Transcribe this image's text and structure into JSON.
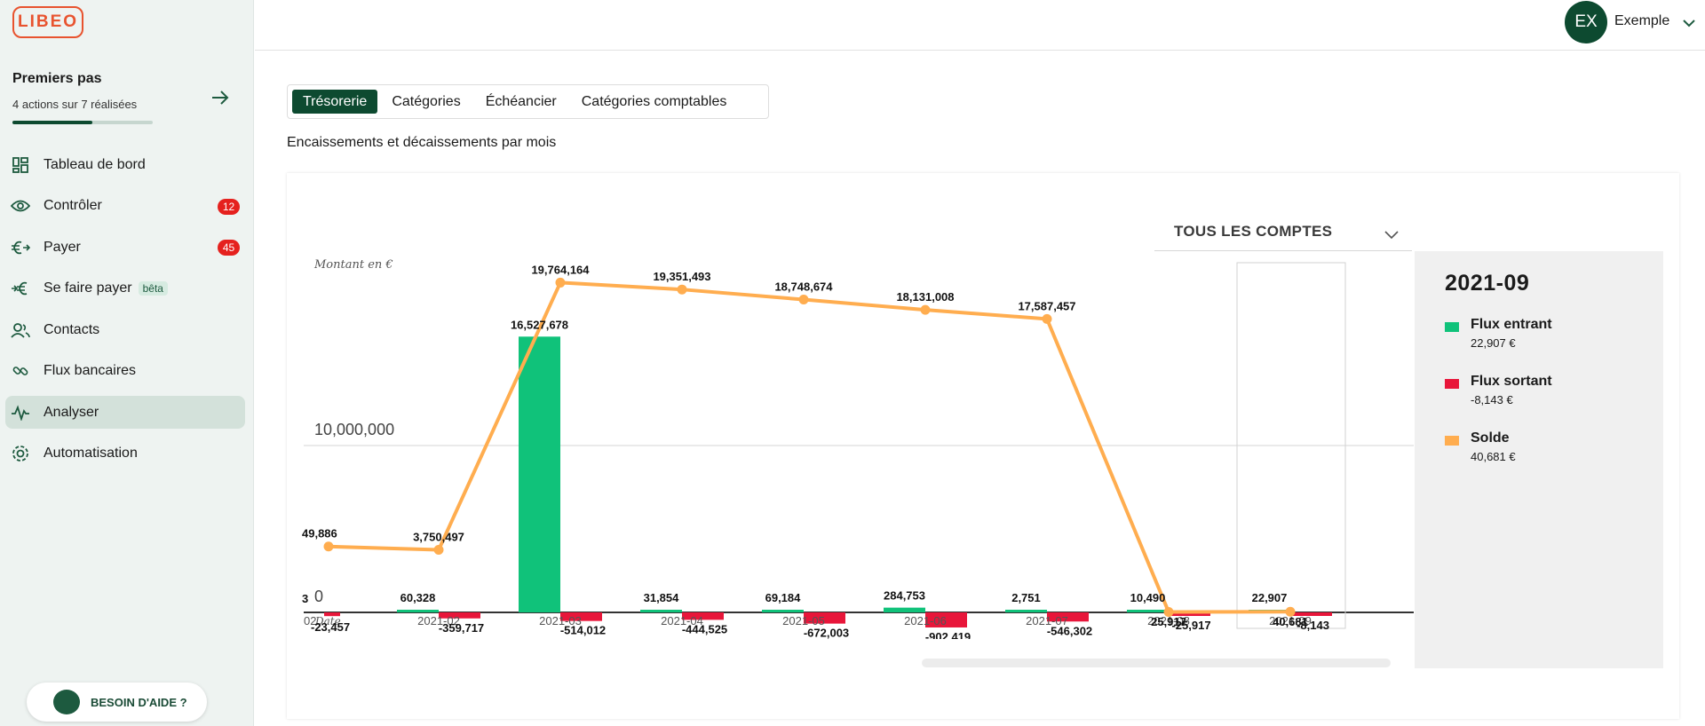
{
  "app": {
    "logo_text": "LIBEO"
  },
  "onboarding": {
    "title": "Premiers pas",
    "subtitle": "4 actions sur 7 réalisées",
    "progress_fraction": 0.5714
  },
  "sidebar": {
    "items": [
      {
        "label": "Tableau de bord",
        "icon": "dashboard-icon",
        "badge": ""
      },
      {
        "label": "Contrôler",
        "icon": "eye-icon",
        "badge": "12"
      },
      {
        "label": "Payer",
        "icon": "euro-out-icon",
        "badge": "45"
      },
      {
        "label": "Se faire payer",
        "icon": "euro-in-icon",
        "badge": "",
        "tag": "bêta"
      },
      {
        "label": "Contacts",
        "icon": "contacts-icon",
        "badge": ""
      },
      {
        "label": "Flux bancaires",
        "icon": "link-icon",
        "badge": ""
      },
      {
        "label": "Analyser",
        "icon": "pulse-icon",
        "badge": "",
        "active": true
      },
      {
        "label": "Automatisation",
        "icon": "gear-icon",
        "badge": ""
      }
    ],
    "help_label": "BESOIN D'AIDE ?"
  },
  "user": {
    "initials": "EX",
    "name": "Exemple"
  },
  "tabs": [
    {
      "label": "Trésorerie",
      "active": true
    },
    {
      "label": "Catégories",
      "active": false
    },
    {
      "label": "Échéancier",
      "active": false
    },
    {
      "label": "Catégories comptables",
      "active": false
    }
  ],
  "page": {
    "subtitle": "Encaissements et décaissements par mois"
  },
  "account_filter": {
    "label": "TOUS LES COMPTES"
  },
  "colors": {
    "primary": "#0d4a30",
    "inflow": "#10c27a",
    "outflow": "#e8163a",
    "balance": "#ffad4f",
    "badge": "#e5211e"
  },
  "chart_data": {
    "type": "bar",
    "ylabel": "Montant en €",
    "xlabel": "Date",
    "y_ticks": [
      0,
      10000000
    ],
    "y_tick_labels": [
      "0",
      "10,000,000"
    ],
    "categories": [
      "2021-02",
      "2021-03",
      "2021-04",
      "2021-05",
      "2021-06",
      "2021-07",
      "2021-08",
      "2021-09"
    ],
    "partial_left": {
      "label": "02",
      "inflow_label": "3",
      "outflow_label": "-23,457",
      "balance": 3949886,
      "balance_label": "49,886",
      "outflow": -223457
    },
    "series": [
      {
        "name": "Flux entrant",
        "values": [
          60328,
          16527678,
          31854,
          69184,
          284753,
          2751,
          10490,
          22907
        ],
        "labels": [
          "60,328",
          "16,527,678",
          "31,854",
          "69,184",
          "284,753",
          "2,751",
          "10,490",
          "22,907"
        ]
      },
      {
        "name": "Flux sortant",
        "values": [
          -359717,
          -514012,
          -444525,
          -672003,
          -902419,
          -546302,
          -25917,
          -8143
        ],
        "labels": [
          "-359,717",
          "-514,012",
          "-444,525",
          "-672,003",
          "-902,419",
          "-546,302",
          "-25,917",
          "-8,143"
        ]
      },
      {
        "name": "Solde",
        "values": [
          3750497,
          19764164,
          19351493,
          18748674,
          18131008,
          17587457,
          25917,
          40681
        ],
        "labels": [
          "3,750,497",
          "19,764,164",
          "19,351,493",
          "18,748,674",
          "18,131,008",
          "17,587,457",
          "25,917",
          "40,681"
        ]
      }
    ],
    "highlighted": "2021-09"
  },
  "tooltip": {
    "title": "2021-09",
    "entries": [
      {
        "name": "Flux entrant",
        "value": "22,907 €",
        "color": "#10c27a"
      },
      {
        "name": "Flux sortant",
        "value": "-8,143 €",
        "color": "#e8163a"
      },
      {
        "name": "Solde",
        "value": "40,681 €",
        "color": "#ffad4f"
      }
    ]
  }
}
